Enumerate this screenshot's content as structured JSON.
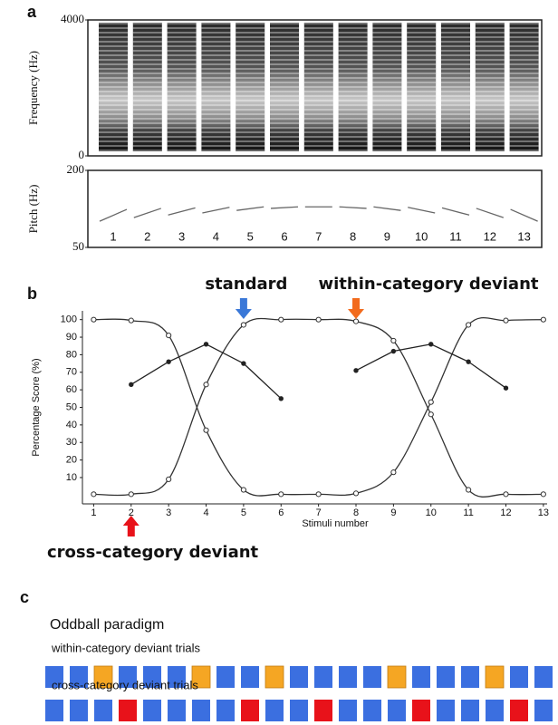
{
  "chart_data": [
    {
      "type": "spectrogram",
      "panel": "a",
      "ylabel": "Frequency (Hz)",
      "ylim": [
        0,
        4000
      ],
      "yticks": [
        0,
        4000
      ]
    },
    {
      "type": "pitch",
      "ylabel": "Pitch (Hz)",
      "ylim": [
        50,
        200
      ],
      "yticks": [
        50,
        200
      ],
      "categories": [
        "1",
        "2",
        "3",
        "4",
        "5",
        "6",
        "7",
        "8",
        "9",
        "10",
        "11",
        "12",
        "13"
      ],
      "pitch_start": [
        101,
        108,
        113,
        117,
        122,
        126,
        129,
        129,
        129,
        128,
        127,
        126,
        124
      ],
      "pitch_end": [
        124,
        126,
        127,
        128,
        129,
        129,
        129,
        126,
        122,
        117,
        113,
        108,
        101
      ],
      "color": "#666666"
    },
    {
      "type": "line",
      "panel": "b",
      "xlabel": "Stimuli number",
      "ylabel": "Percentage Score (%)",
      "x": [
        1,
        2,
        3,
        4,
        5,
        6,
        7,
        8,
        9,
        10,
        11,
        12,
        13
      ],
      "xlim": [
        0.7,
        13.1
      ],
      "xticks": [
        1,
        2,
        3,
        4,
        5,
        6,
        7,
        8,
        9,
        10,
        11,
        12,
        13
      ],
      "ylim": [
        -5,
        105
      ],
      "yticks": [
        10,
        20,
        30,
        40,
        50,
        60,
        70,
        80,
        90,
        100
      ],
      "series": [
        {
          "color": "#333333",
          "marker": "open",
          "smooth": true,
          "values": [
            100,
            99.5,
            91,
            37,
            3,
            0.5,
            0.5,
            1,
            13,
            53,
            97,
            99.5,
            100
          ]
        },
        {
          "color": "#333333",
          "marker": "open",
          "smooth": true,
          "values": [
            0.5,
            0.5,
            9,
            63,
            97,
            100,
            100,
            99,
            88,
            46,
            3,
            0.5,
            0.5
          ]
        },
        {
          "color": "#222222",
          "marker": "filled",
          "smooth": false,
          "values": [
            null,
            63,
            76,
            86,
            75,
            55,
            null,
            71,
            82,
            86,
            76,
            61,
            null
          ]
        }
      ],
      "annotations": [
        {
          "text": "standard",
          "x": 5,
          "color": "#3a78d8",
          "side": "top"
        },
        {
          "text": "within-category deviant",
          "x": 8,
          "color": "#f26b1d",
          "side": "top"
        },
        {
          "text": "cross-category deviant",
          "x": 2,
          "color": "#e8121a",
          "side": "bottom"
        }
      ]
    }
  ],
  "panel_c": {
    "label": "c",
    "title": "Oddball paradigm",
    "trial_count": 21,
    "standard_color": "#3b6fe0",
    "rows": [
      {
        "label": "within-category deviant trials",
        "color": "#f5a623",
        "deviants": [
          2,
          6,
          9,
          14,
          18
        ]
      },
      {
        "label": "cross-category deviant trials",
        "color": "#e8121a",
        "deviants": [
          3,
          8,
          11,
          15,
          19
        ]
      }
    ]
  }
}
